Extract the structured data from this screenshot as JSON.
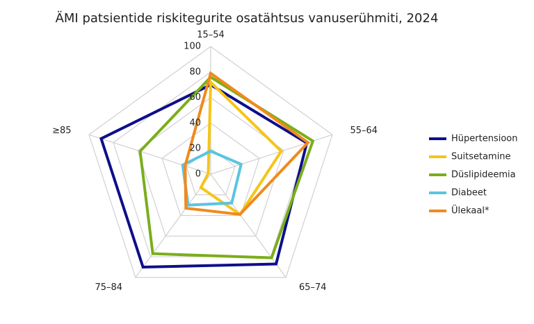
{
  "chart_data": {
    "type": "radar",
    "title": "ÄMI patsientide riskitegurite osatähtsus vanuserühmiti, 2024",
    "categories": [
      "15–54",
      "55–64",
      "65–74",
      "75–84",
      "≥85"
    ],
    "ylim": [
      0,
      100
    ],
    "yticks": [
      0,
      20,
      40,
      60,
      80,
      100
    ],
    "grid": true,
    "legend": "right",
    "series": [
      {
        "name": "Hüpertensioon",
        "color": "#0d0f8a",
        "values": [
          70,
          79,
          87,
          90,
          90
        ]
      },
      {
        "name": "Suitsetamine",
        "color": "#f5c518",
        "values": [
          72,
          58,
          39,
          13,
          2
        ]
      },
      {
        "name": "Düslipideemia",
        "color": "#7aae1a",
        "values": [
          76,
          84,
          81,
          77,
          58
        ]
      },
      {
        "name": "Diabeet",
        "color": "#5bc4e0",
        "values": [
          18,
          25,
          28,
          30,
          23
        ]
      },
      {
        "name": "Ülekaal*",
        "color": "#f08a1c",
        "values": [
          79,
          80,
          39,
          33,
          21
        ]
      }
    ]
  }
}
